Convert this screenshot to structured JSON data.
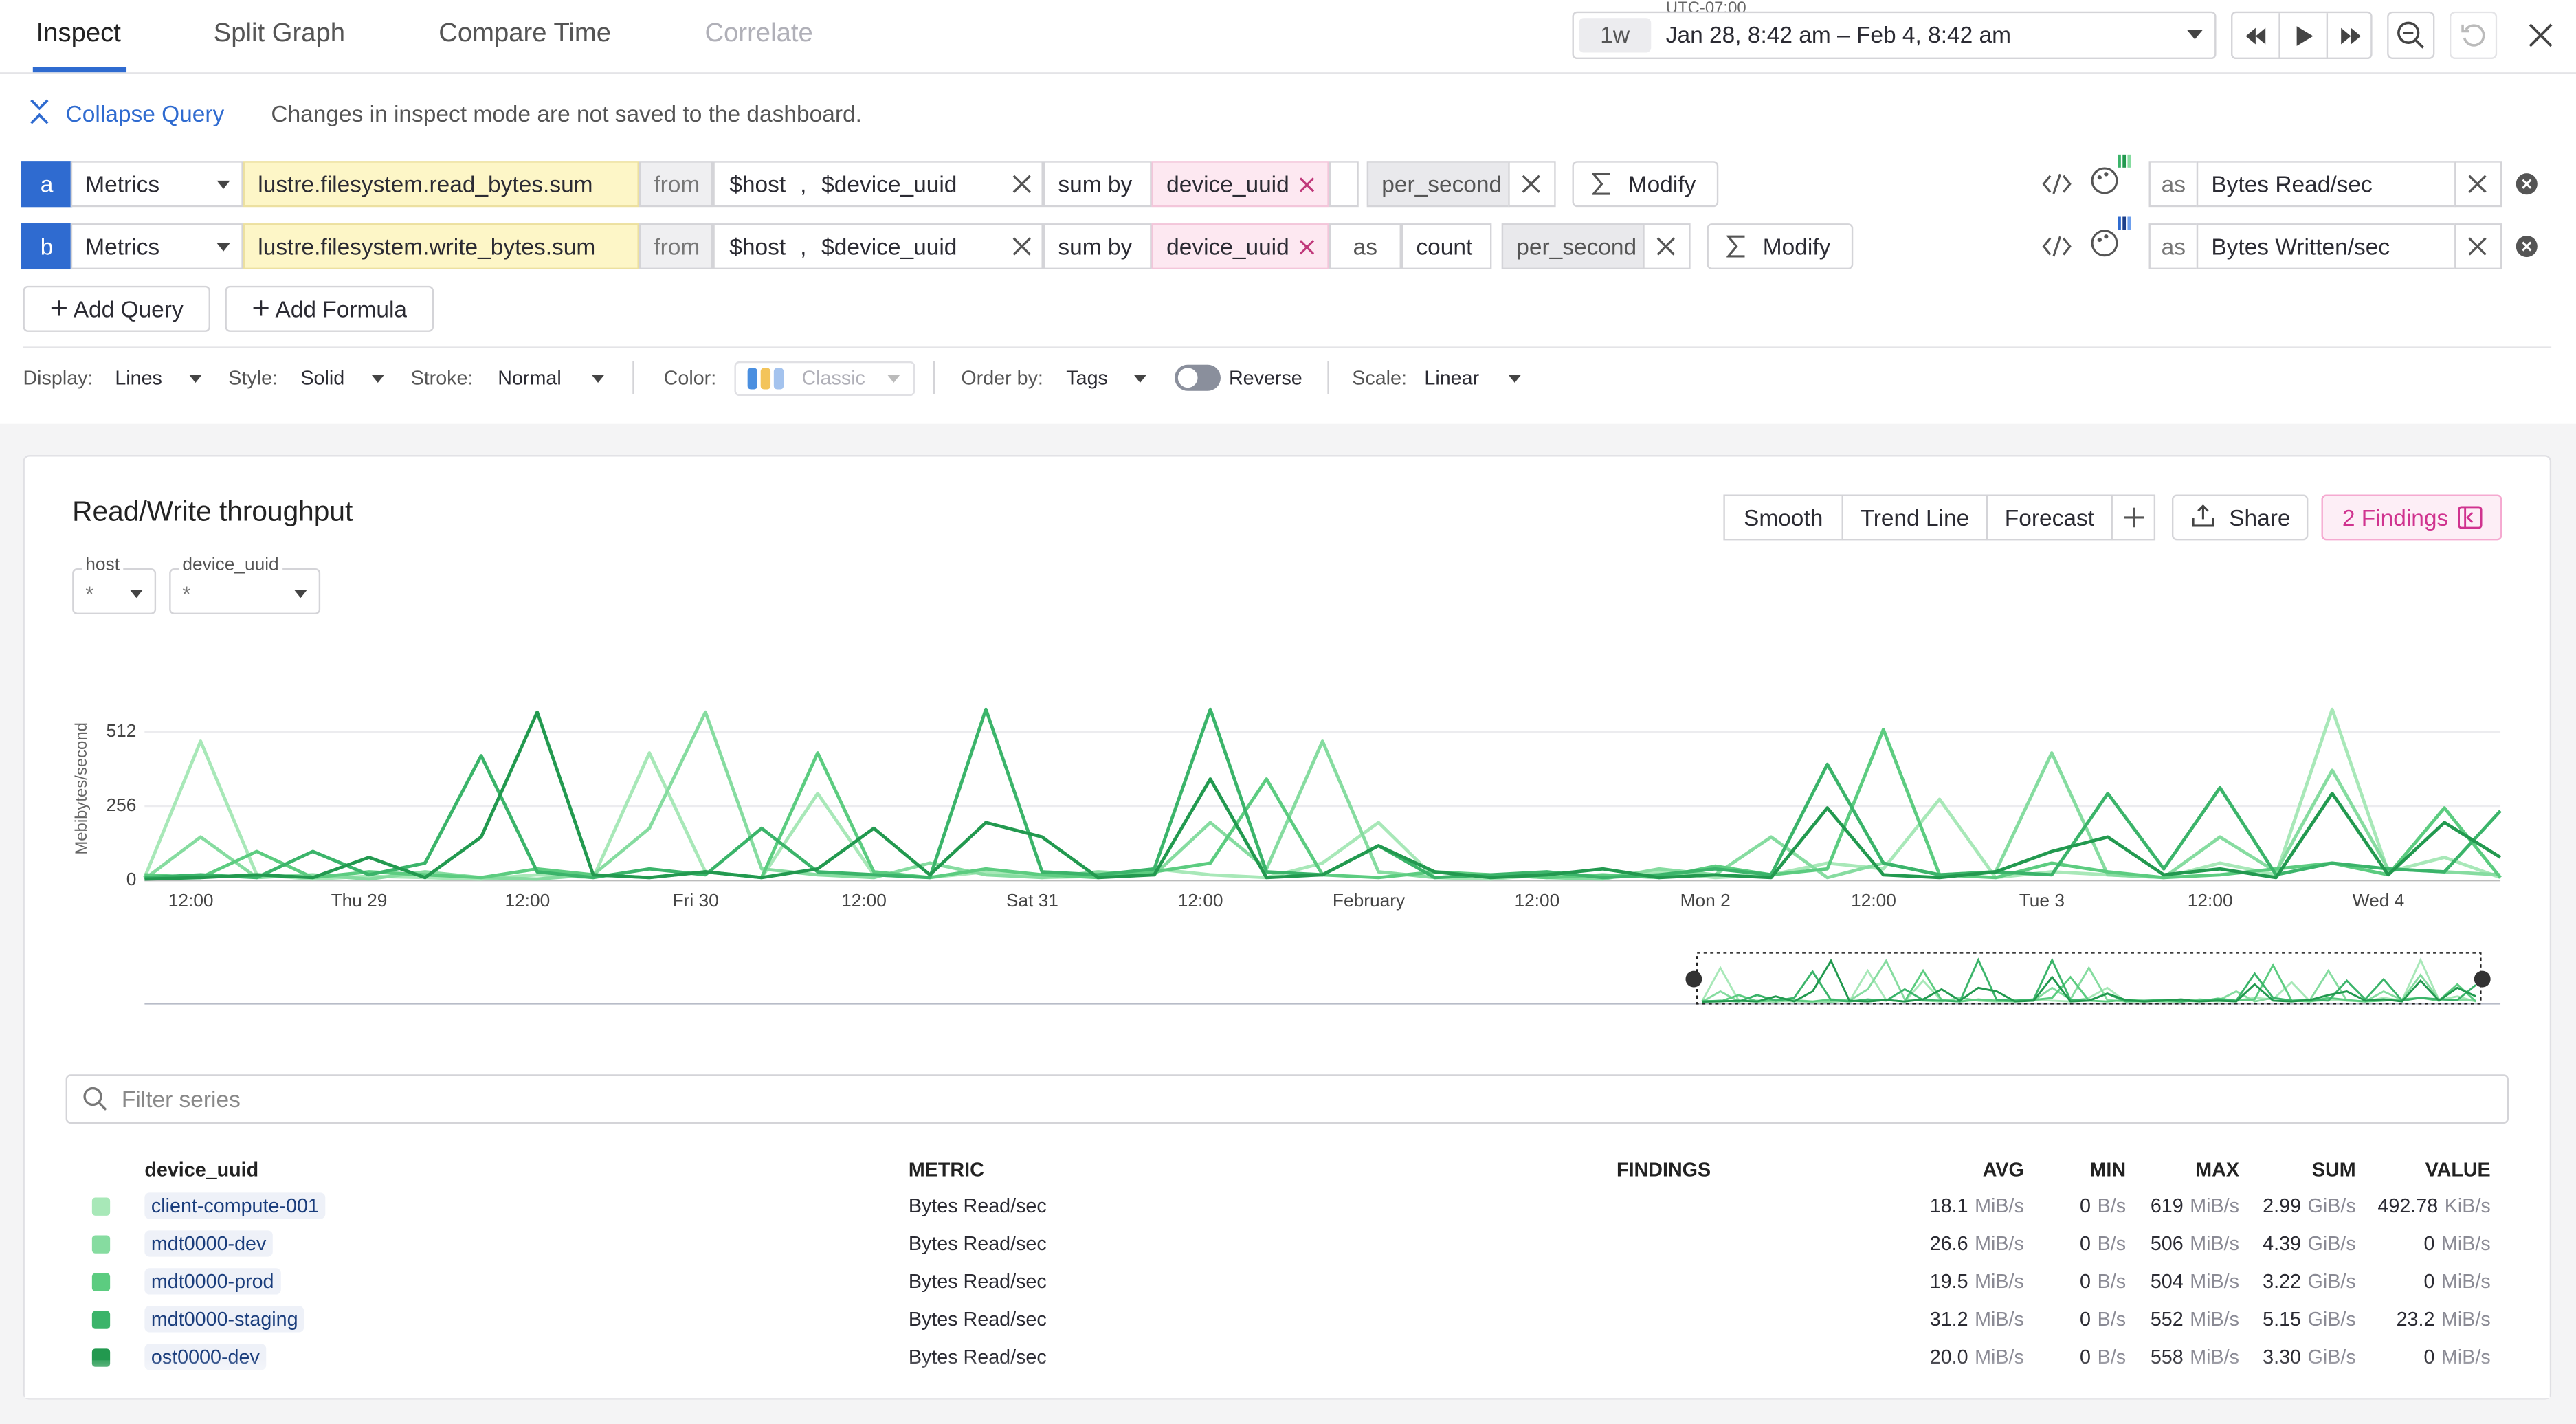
{
  "tabs": [
    "Inspect",
    "Split Graph",
    "Compare Time",
    "Correlate"
  ],
  "time": {
    "timezone": "UTC-07:00",
    "preset": "1w",
    "range": "Jan 28, 8:42 am – Feb 4, 8:42 am"
  },
  "query_editor": {
    "collapse": "Collapse Query",
    "notice": "Changes in inspect mode are not saved to the dashboard.",
    "queries": [
      {
        "letter": "a",
        "source": "Metrics",
        "metric": "lustre.filesystem.read_bytes.sum",
        "from": "from",
        "tags": [
          "$host",
          "$device_uuid"
        ],
        "separator": ",",
        "aggregation": "sum by",
        "group_by": "device_uuid",
        "function": "per_second",
        "modify": "Modify",
        "alias_prefix": "as",
        "alias": "Bytes Read/sec"
      },
      {
        "letter": "b",
        "source": "Metrics",
        "metric": "lustre.filesystem.write_bytes.sum",
        "from": "from",
        "tags": [
          "$host",
          "$device_uuid"
        ],
        "separator": ",",
        "aggregation": "sum by",
        "group_by": "device_uuid",
        "as_label": "as",
        "as_value": "count",
        "function": "per_second",
        "modify": "Modify",
        "alias_prefix": "as",
        "alias": "Bytes Written/sec"
      }
    ],
    "add_query": "Add Query",
    "add_formula": "Add Formula"
  },
  "display_options": {
    "display": {
      "label": "Display:",
      "value": "Lines"
    },
    "style": {
      "label": "Style:",
      "value": "Solid"
    },
    "stroke": {
      "label": "Stroke:",
      "value": "Normal"
    },
    "color": {
      "label": "Color:",
      "value": "Classic"
    },
    "order_by": {
      "label": "Order by:",
      "value": "Tags"
    },
    "reverse": {
      "label": "Reverse",
      "on": false
    },
    "scale": {
      "label": "Scale:",
      "value": "Linear"
    }
  },
  "widget": {
    "buttons": [
      "Smooth",
      "Trend Line",
      "Forecast"
    ],
    "share": "Share",
    "findings": "2 Findings",
    "template_variables": [
      {
        "name": "host",
        "value": "*"
      },
      {
        "name": "device_uuid",
        "value": "*"
      }
    ]
  },
  "chart_data": {
    "type": "line",
    "title": "Read/Write throughput",
    "y_label": "Mebibytes/second",
    "xlim": [
      0,
      168
    ],
    "ylim": [
      0,
      600
    ],
    "yticks": [
      0,
      256,
      512
    ],
    "grid": true,
    "xticks": [
      {
        "value": 3.3,
        "label": "12:00"
      },
      {
        "value": 15.3,
        "label": "Thu 29"
      },
      {
        "value": 27.3,
        "label": "12:00"
      },
      {
        "value": 39.3,
        "label": "Fri 30"
      },
      {
        "value": 51.3,
        "label": "12:00"
      },
      {
        "value": 63.3,
        "label": "Sat 31"
      },
      {
        "value": 75.3,
        "label": "12:00"
      },
      {
        "value": 87.3,
        "label": "February"
      },
      {
        "value": 99.3,
        "label": "12:00"
      },
      {
        "value": 111.3,
        "label": "Mon 2"
      },
      {
        "value": 123.3,
        "label": "12:00"
      },
      {
        "value": 135.3,
        "label": "Tue 3"
      },
      {
        "value": 147.3,
        "label": "12:00"
      },
      {
        "value": 159.3,
        "label": "Wed 4"
      }
    ],
    "x": [
      0,
      4,
      8,
      12,
      16,
      20,
      24,
      28,
      32,
      36,
      40,
      44,
      48,
      52,
      56,
      60,
      64,
      68,
      72,
      76,
      80,
      84,
      88,
      92,
      96,
      100,
      104,
      108,
      112,
      116,
      120,
      124,
      128,
      132,
      136,
      140,
      144,
      148,
      152,
      156,
      160,
      164,
      168
    ],
    "series": [
      {
        "name": "client-compute-001",
        "color": "#a8e8b8",
        "values": [
          10,
          480,
          20,
          5,
          15,
          10,
          5,
          20,
          10,
          440,
          30,
          10,
          300,
          20,
          10,
          30,
          10,
          15,
          40,
          20,
          10,
          60,
          200,
          10,
          5,
          20,
          10,
          30,
          10,
          20,
          60,
          40,
          280,
          10,
          30,
          20,
          10,
          60,
          20,
          590,
          30,
          80,
          10
        ]
      },
      {
        "name": "mdt0000-dev",
        "color": "#86dca0",
        "values": [
          5,
          150,
          10,
          20,
          5,
          30,
          10,
          5,
          20,
          180,
          580,
          40,
          20,
          10,
          60,
          20,
          10,
          30,
          20,
          200,
          40,
          480,
          30,
          10,
          20,
          10,
          5,
          40,
          20,
          150,
          10,
          60,
          20,
          30,
          440,
          20,
          10,
          150,
          30,
          380,
          40,
          30,
          20
        ]
      },
      {
        "name": "mdt0000-prod",
        "color": "#5ccc80",
        "values": [
          20,
          10,
          100,
          10,
          30,
          20,
          10,
          40,
          20,
          10,
          30,
          10,
          440,
          30,
          10,
          40,
          20,
          10,
          30,
          60,
          350,
          20,
          10,
          30,
          20,
          10,
          20,
          10,
          50,
          20,
          40,
          520,
          20,
          10,
          60,
          30,
          10,
          20,
          40,
          60,
          20,
          250,
          10
        ]
      },
      {
        "name": "mdt0000-staging",
        "color": "#3bb46a",
        "values": [
          10,
          20,
          10,
          100,
          20,
          60,
          430,
          30,
          10,
          40,
          20,
          180,
          30,
          20,
          10,
          590,
          30,
          20,
          40,
          590,
          30,
          20,
          120,
          10,
          20,
          30,
          10,
          20,
          40,
          20,
          400,
          60,
          20,
          30,
          20,
          300,
          40,
          320,
          20,
          60,
          40,
          30,
          240
        ]
      },
      {
        "name": "ost0000-dev",
        "color": "#22994f",
        "values": [
          5,
          10,
          20,
          10,
          80,
          10,
          150,
          580,
          20,
          10,
          30,
          10,
          40,
          180,
          20,
          200,
          150,
          10,
          20,
          350,
          10,
          20,
          120,
          30,
          10,
          20,
          40,
          10,
          20,
          10,
          250,
          20,
          10,
          30,
          100,
          150,
          20,
          40,
          10,
          300,
          20,
          200,
          80
        ]
      }
    ]
  },
  "series_table": {
    "filter_placeholder": "Filter series",
    "columns": [
      "device_uuid",
      "METRIC",
      "FINDINGS",
      "AVG",
      "MIN",
      "MAX",
      "SUM",
      "VALUE"
    ],
    "rows": [
      {
        "device_uuid": "client-compute-001",
        "metric": "Bytes Read/sec",
        "avg": [
          "18.1",
          "MiB/s"
        ],
        "min": [
          "0",
          "B/s"
        ],
        "max": [
          "619",
          "MiB/s"
        ],
        "sum": [
          "2.99",
          "GiB/s"
        ],
        "value": [
          "492.78",
          "KiB/s"
        ]
      },
      {
        "device_uuid": "mdt0000-dev",
        "metric": "Bytes Read/sec",
        "avg": [
          "26.6",
          "MiB/s"
        ],
        "min": [
          "0",
          "B/s"
        ],
        "max": [
          "506",
          "MiB/s"
        ],
        "sum": [
          "4.39",
          "GiB/s"
        ],
        "value": [
          "0",
          "MiB/s"
        ]
      },
      {
        "device_uuid": "mdt0000-prod",
        "metric": "Bytes Read/sec",
        "avg": [
          "19.5",
          "MiB/s"
        ],
        "min": [
          "0",
          "B/s"
        ],
        "max": [
          "504",
          "MiB/s"
        ],
        "sum": [
          "3.22",
          "GiB/s"
        ],
        "value": [
          "0",
          "MiB/s"
        ]
      },
      {
        "device_uuid": "mdt0000-staging",
        "metric": "Bytes Read/sec",
        "avg": [
          "31.2",
          "MiB/s"
        ],
        "min": [
          "0",
          "B/s"
        ],
        "max": [
          "552",
          "MiB/s"
        ],
        "sum": [
          "5.15",
          "GiB/s"
        ],
        "value": [
          "23.2",
          "MiB/s"
        ]
      },
      {
        "device_uuid": "ost0000-dev",
        "metric": "Bytes Read/sec",
        "avg": [
          "20.0",
          "MiB/s"
        ],
        "min": [
          "0",
          "B/s"
        ],
        "max": [
          "558",
          "MiB/s"
        ],
        "sum": [
          "3.30",
          "GiB/s"
        ],
        "value": [
          "0",
          "MiB/s"
        ]
      }
    ]
  }
}
